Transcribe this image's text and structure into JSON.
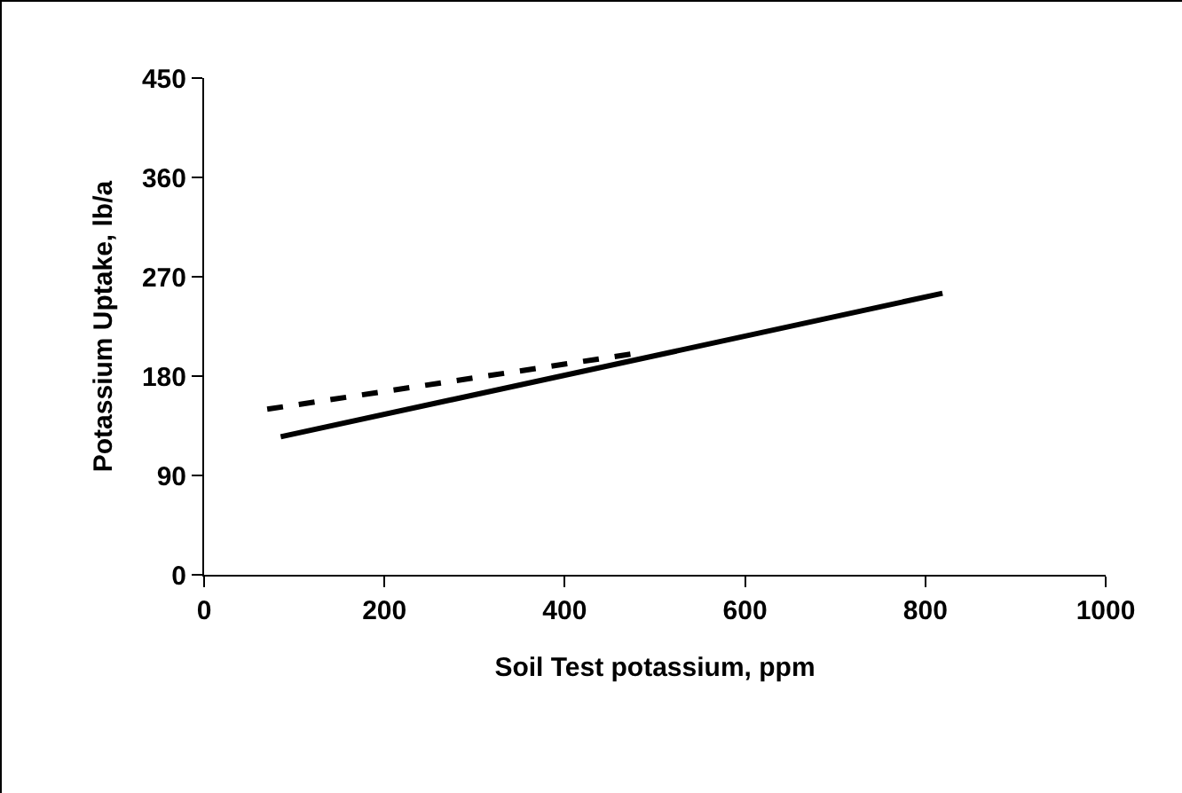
{
  "chart_data": {
    "type": "line",
    "xlabel": "Soil Test potassium, ppm",
    "ylabel": "Potassium Uptake, lb/a",
    "xlim": [
      0,
      1000
    ],
    "xticks": [
      0,
      200,
      400,
      600,
      800,
      1000
    ],
    "ylim": [
      0,
      450
    ],
    "yticks": [
      0,
      90,
      180,
      270,
      360,
      450
    ],
    "marker": "none",
    "series": [
      {
        "color": "#000000",
        "line_style": "solid",
        "x": [
          85,
          819
        ],
        "values": [
          125,
          255
        ]
      },
      {
        "color": "#000000",
        "line_style": "dashed",
        "x": [
          70,
          474
        ],
        "values": [
          150,
          200
        ]
      }
    ]
  }
}
